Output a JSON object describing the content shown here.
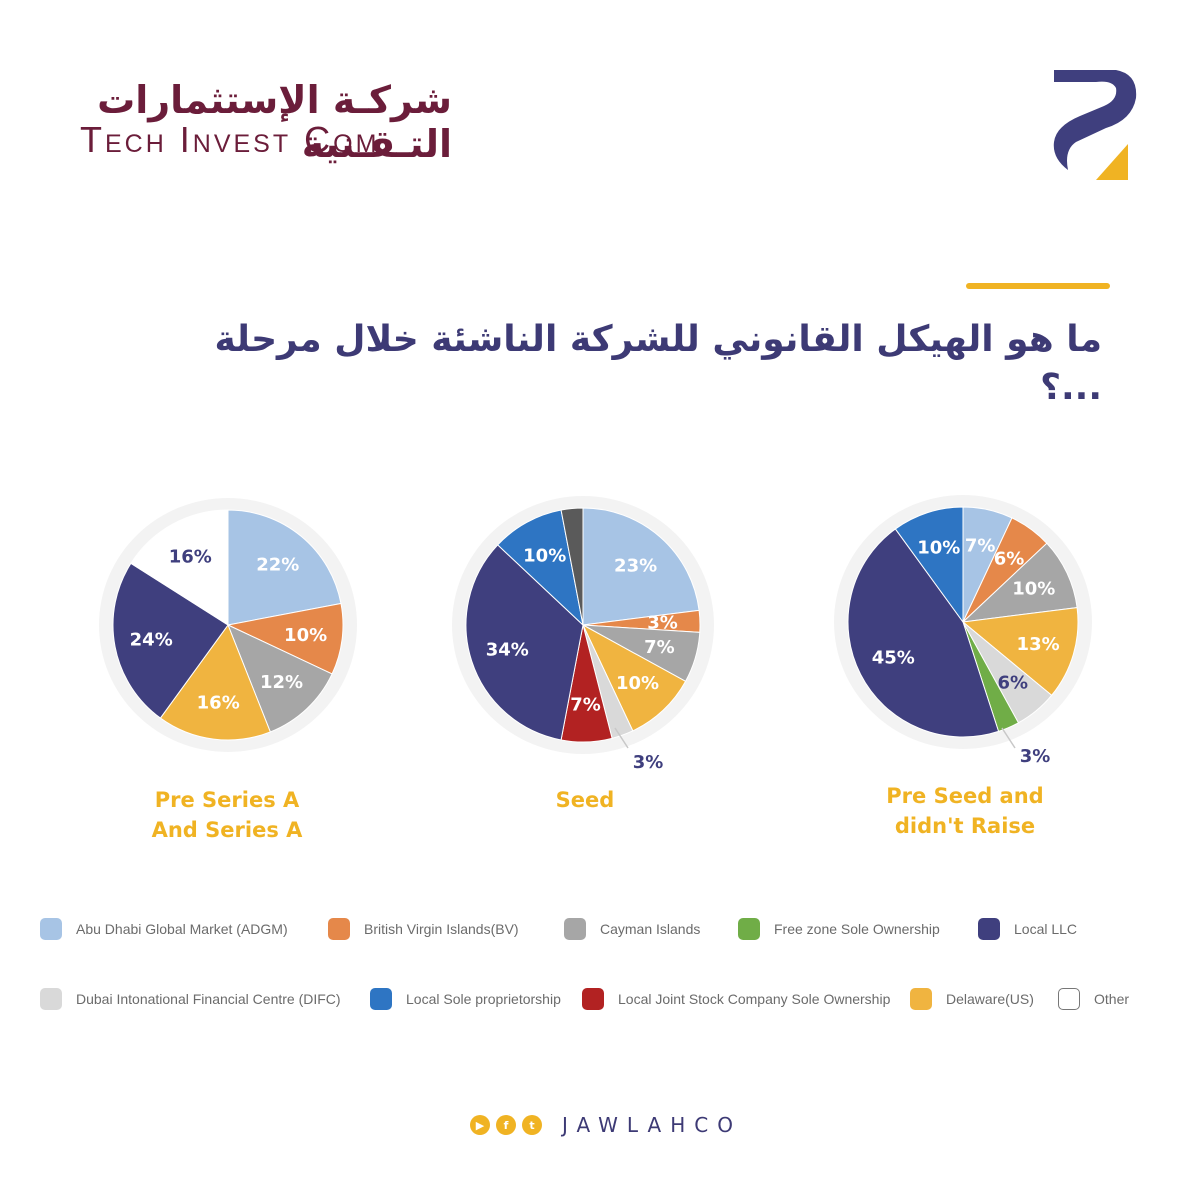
{
  "brand": {
    "name_ar": "شركـة الإستثمارات التـقـنية",
    "name_en": "Tech Invest Com"
  },
  "heading": "ما هو الهيكل القانوني للشركة الناشئة خلال مرحلة ...؟",
  "colors": {
    "accent": "#f0b323",
    "title": "#3d3a75",
    "brand": "#6b1d3a"
  },
  "chart_data": [
    {
      "type": "pie",
      "title": "Pre Series A And Series A",
      "title_lines": [
        "Pre Series A",
        "And Series A"
      ],
      "slices": [
        {
          "category": "Abu Dhabi Global Market (ADGM)",
          "value": 22,
          "label": "22%"
        },
        {
          "category": "British Virgin Islands(BV)",
          "value": 10,
          "label": "10%"
        },
        {
          "category": "Cayman Islands",
          "value": 12,
          "label": "12%"
        },
        {
          "category": "Delaware(US)",
          "value": 16,
          "label": "16%"
        },
        {
          "category": "Local LLC",
          "value": 24,
          "label": "24%"
        },
        {
          "category": "Other",
          "value": 16,
          "label": "16%"
        }
      ]
    },
    {
      "type": "pie",
      "title": "Seed",
      "title_lines": [
        "Seed"
      ],
      "slices": [
        {
          "category": "Abu Dhabi Global Market (ADGM)",
          "value": 23,
          "label": "23%"
        },
        {
          "category": "British Virgin Islands(BV)",
          "value": 3,
          "label": "3%"
        },
        {
          "category": "Cayman Islands",
          "value": 7,
          "label": "7%"
        },
        {
          "category": "Delaware(US)",
          "value": 10,
          "label": "10%"
        },
        {
          "category": "Dubai Intonational Financial Centre (DIFC)",
          "value": 3,
          "label": "3%"
        },
        {
          "category": "Local Joint Stock Company Sole Ownership",
          "value": 7,
          "label": "7%"
        },
        {
          "category": "Local LLC",
          "value": 34,
          "label": "34%"
        },
        {
          "category": "Local Sole proprietorship",
          "value": 10,
          "label": "10%"
        },
        {
          "category": "Unlabeled (dark gray)",
          "value": 3,
          "label": ""
        }
      ]
    },
    {
      "type": "pie",
      "title": "Pre Seed and didn't Raise",
      "title_lines": [
        "Pre Seed and",
        "didn't Raise"
      ],
      "slices": [
        {
          "category": "Abu Dhabi Global Market (ADGM)",
          "value": 7,
          "label": "7%"
        },
        {
          "category": "British Virgin Islands(BV)",
          "value": 6,
          "label": "6%"
        },
        {
          "category": "Cayman Islands",
          "value": 10,
          "label": "10%"
        },
        {
          "category": "Delaware(US)",
          "value": 13,
          "label": "13%"
        },
        {
          "category": "Dubai Intonational Financial Centre (DIFC)",
          "value": 6,
          "label": "6%"
        },
        {
          "category": "Free zone Sole Ownership",
          "value": 3,
          "label": "3%"
        },
        {
          "category": "Local LLC",
          "value": 45,
          "label": "45%"
        },
        {
          "category": "Local Sole proprietorship",
          "value": 10,
          "label": "10%"
        }
      ]
    }
  ],
  "legend": {
    "rows": [
      [
        {
          "label": "Abu Dhabi Global Market (ADGM)",
          "color": "#a7c4e5"
        },
        {
          "label": "British Virgin Islands(BV)",
          "color": "#e5884a"
        },
        {
          "label": "Cayman Islands",
          "color": "#a6a6a6"
        },
        {
          "label": "Free zone Sole Ownership",
          "color": "#70ad47"
        },
        {
          "label": "Local LLC",
          "color": "#3f3f7e"
        }
      ],
      [
        {
          "label": "Dubai Intonational Financial Centre (DIFC)",
          "color": "#d9d9d9"
        },
        {
          "label": "Local Sole proprietorship",
          "color": "#2e75c3"
        },
        {
          "label": "Local Joint Stock Company Sole Ownership",
          "color": "#b22222"
        },
        {
          "label": "Delaware(US)",
          "color": "#f0b440"
        },
        {
          "label": "Other",
          "color": "#ffffff"
        }
      ]
    ]
  },
  "slice_colors": {
    "Abu Dhabi Global Market (ADGM)": "#a7c4e5",
    "British Virgin Islands(BV)": "#e5884a",
    "Cayman Islands": "#a6a6a6",
    "Free zone Sole Ownership": "#70ad47",
    "Local LLC": "#3f3f7e",
    "Dubai Intonational Financial Centre (DIFC)": "#d9d9d9",
    "Local Sole proprietorship": "#2e75c3",
    "Local Joint Stock Company Sole Ownership": "#b22222",
    "Delaware(US)": "#f0b440",
    "Other": "#ffffff",
    "Unlabeled (dark gray)": "#5a5a5a"
  },
  "footer": {
    "handle": "JAWLAHCO",
    "icons": [
      "youtube-icon",
      "facebook-icon",
      "twitter-icon"
    ]
  }
}
